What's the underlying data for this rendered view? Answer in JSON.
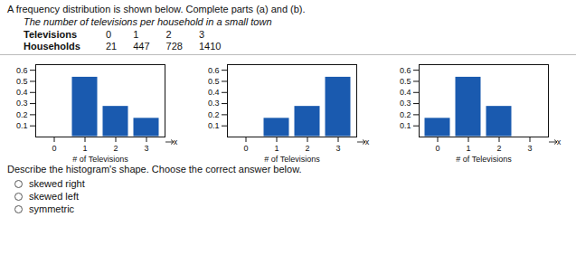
{
  "title": "A frequency distribution is shown below. Complete parts (a) and (b).",
  "subtitle": "The number of televisions per household in a small town",
  "table": [
    {
      "header": "Televisions",
      "cells": [
        "0",
        "1",
        "2",
        "3"
      ]
    },
    {
      "header": "Households",
      "cells": [
        "21",
        "447",
        "728",
        "1410"
      ]
    }
  ],
  "chart_data": [
    {
      "type": "bar",
      "categories": [
        "0",
        "1",
        "2",
        "3"
      ],
      "values": [
        0.008,
        0.541,
        0.279,
        0.172
      ],
      "color": "#1a5aaf",
      "xlabel": "# of Televisions",
      "ylim": [
        0,
        0.65
      ],
      "yticks": [
        0.1,
        0.2,
        0.3,
        0.4,
        0.5,
        0.6
      ],
      "grid": false,
      "annotations": [
        "x"
      ]
    },
    {
      "type": "bar",
      "categories": [
        "0",
        "1",
        "2",
        "3"
      ],
      "values": [
        0.008,
        0.172,
        0.279,
        0.541
      ],
      "color": "#1a5aaf",
      "xlabel": "# of Televisions",
      "ylim": [
        0,
        0.65
      ],
      "yticks": [
        0.1,
        0.2,
        0.3,
        0.4,
        0.5,
        0.6
      ],
      "grid": false,
      "annotations": [
        "x"
      ]
    },
    {
      "type": "bar",
      "categories": [
        "0",
        "1",
        "2",
        "3"
      ],
      "values": [
        0.172,
        0.541,
        0.279,
        0.008
      ],
      "color": "#1a5aaf",
      "xlabel": "# of Televisions",
      "ylim": [
        0,
        0.65
      ],
      "yticks": [
        0.1,
        0.2,
        0.3,
        0.4,
        0.5,
        0.6
      ],
      "grid": false,
      "annotations": [
        "x"
      ]
    }
  ],
  "question": "Describe the histogram's shape. Choose the correct answer below.",
  "options": [
    "skewed right",
    "skewed left",
    "symmetric"
  ]
}
